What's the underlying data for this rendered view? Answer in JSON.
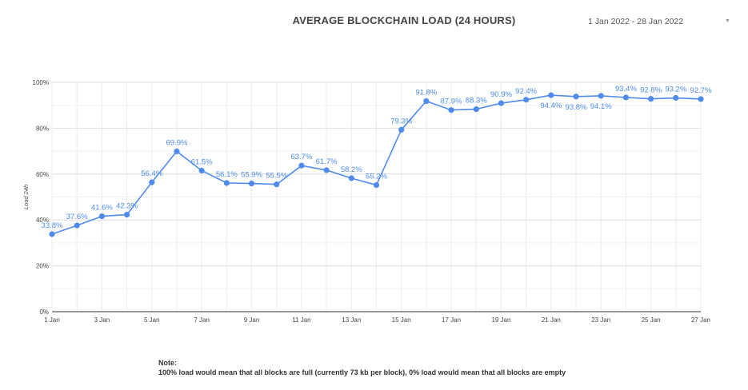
{
  "header": {
    "title": "AVERAGE BLOCKCHAIN LOAD (24 HOURS)",
    "date_range": "1 Jan 2022 - 28 Jan 2022",
    "dropdown_icon": "chevron-down-icon"
  },
  "note": {
    "heading": "Note:",
    "text": "100% load would mean that all blocks are full (currently 73 kb per block), 0% load would mean that all blocks are empty"
  },
  "chart_data": {
    "type": "line",
    "title": "AVERAGE BLOCKCHAIN LOAD (24 HOURS)",
    "ylabel": "Load 24h",
    "xlabel": "",
    "x": [
      "1 Jan",
      "2 Jan",
      "3 Jan",
      "4 Jan",
      "5 Jan",
      "6 Jan",
      "7 Jan",
      "8 Jan",
      "9 Jan",
      "10 Jan",
      "11 Jan",
      "12 Jan",
      "13 Jan",
      "14 Jan",
      "15 Jan",
      "16 Jan",
      "17 Jan",
      "18 Jan",
      "19 Jan",
      "20 Jan",
      "21 Jan",
      "22 Jan",
      "23 Jan",
      "24 Jan",
      "25 Jan",
      "26 Jan",
      "27 Jan"
    ],
    "x_tick_labels": [
      "1 Jan",
      "3 Jan",
      "5 Jan",
      "7 Jan",
      "9 Jan",
      "11 Jan",
      "13 Jan",
      "15 Jan",
      "17 Jan",
      "19 Jan",
      "21 Jan",
      "23 Jan",
      "25 Jan",
      "27 Jan"
    ],
    "values": [
      33.8,
      37.6,
      41.6,
      42.3,
      56.4,
      69.9,
      61.5,
      56.1,
      55.9,
      55.5,
      63.7,
      61.7,
      58.2,
      55.2,
      79.3,
      91.8,
      87.9,
      88.3,
      90.9,
      92.4,
      94.4,
      93.8,
      94.1,
      93.4,
      92.8,
      93.2,
      92.7
    ],
    "data_labels": [
      "33.8%",
      "37.6%",
      "41.6%",
      "42.3%",
      "56.4%",
      "69.9%",
      "61.5%",
      "56.1%",
      "55.9%",
      "55.5%",
      "63.7%",
      "61.7%",
      "58.2%",
      "55.2%",
      "79.3%",
      "91.8%",
      "87.9%",
      "88.3%",
      "90.9%",
      "92.4%",
      "94.4%",
      "93.8%",
      "94.1%",
      "93.4%",
      "92.8%",
      "93.2%",
      "92.7%"
    ],
    "label_below": [
      false,
      false,
      false,
      false,
      false,
      false,
      false,
      false,
      false,
      false,
      false,
      false,
      false,
      false,
      false,
      false,
      false,
      false,
      false,
      false,
      true,
      true,
      true,
      false,
      false,
      false,
      false
    ],
    "y_ticks": [
      0,
      20,
      40,
      60,
      80,
      100
    ],
    "y_tick_labels": [
      "0%",
      "20%",
      "40%",
      "60%",
      "80%",
      "100%"
    ],
    "ylim": [
      0,
      100
    ],
    "grid": true,
    "legend": "none",
    "line_color": "#4f8bec"
  }
}
